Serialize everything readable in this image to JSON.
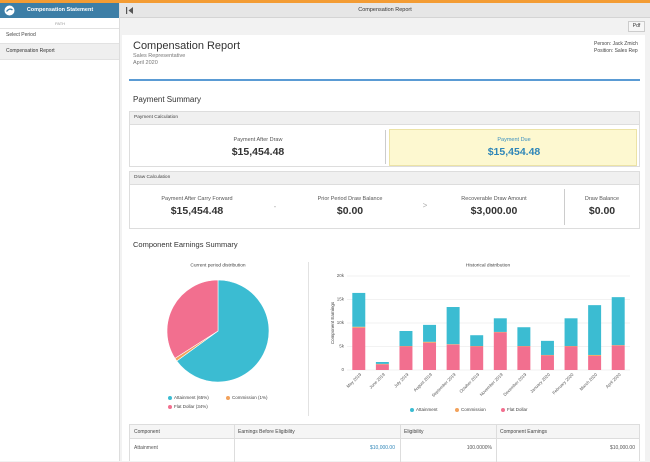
{
  "top_bar": {
    "title": "Compensation Report"
  },
  "sidebar": {
    "title": "Compensation Statement",
    "path_label": "PATH",
    "items": [
      "Select Period",
      "Compensation Report"
    ]
  },
  "toolbar": {
    "pdf": "Pdf"
  },
  "report": {
    "title": "Compensation Report",
    "subtitle": "Sales Representative",
    "period": "April 2020",
    "person": "Person: Jack Zmich",
    "position": "Position: Sales Rep"
  },
  "payment_summary": {
    "title": "Payment Summary",
    "payment_calculation": {
      "header": "Payment Calculation",
      "items": [
        {
          "label": "Payment After Draw",
          "value": "$15,454.48"
        },
        {
          "label": "Payment Due",
          "value": "$15,454.48"
        }
      ]
    },
    "draw_calculation": {
      "header": "Draw Calculation",
      "items": [
        {
          "label": "Payment After Carry Forward",
          "value": "$15,454.48"
        },
        {
          "label": "Prior Period Draw Balance",
          "value": "$0.00"
        },
        {
          "label": "Recoverable Draw Amount",
          "value": "$3,000.00"
        },
        {
          "label": "Draw Balance",
          "value": "$0.00"
        }
      ],
      "separators": [
        "-",
        ">"
      ]
    }
  },
  "component_earnings": {
    "title": "Component Earnings Summary"
  },
  "chart_data": [
    {
      "type": "pie",
      "title": "Current period distribution",
      "categories": [
        "Attainment (65%)",
        "Commission (1%)",
        "Flat Dollar (34%)"
      ],
      "values": [
        65,
        1,
        34
      ],
      "colors": [
        "#3bbcd2",
        "#f2a25c",
        "#f26f8f"
      ]
    },
    {
      "type": "bar",
      "stacked": true,
      "title": "Historical distribution",
      "y_label": "Component Earnings",
      "categories": [
        "May 2019",
        "June 2019",
        "July 2019",
        "August 2019",
        "September 2019",
        "October 2019",
        "November 2019",
        "December 2019",
        "January 2020",
        "February 2020",
        "March 2020",
        "April 2020"
      ],
      "series": [
        {
          "name": "Attainment",
          "color": "#3bbcd2",
          "values": [
            7200,
            400,
            3200,
            3600,
            7900,
            2300,
            2900,
            4000,
            3000,
            5900,
            10600,
            10200
          ]
        },
        {
          "name": "Commission",
          "color": "#f2a25c",
          "values": [
            200,
            100,
            100,
            200,
            100,
            100,
            100,
            100,
            100,
            100,
            200,
            100
          ]
        },
        {
          "name": "Flat Dollar",
          "color": "#f26f8f",
          "values": [
            9000,
            1200,
            5000,
            5800,
            5400,
            5000,
            8000,
            5000,
            3100,
            5000,
            3000,
            5200
          ]
        }
      ],
      "ylim": [
        0,
        20000
      ],
      "yticks": [
        0,
        {
          "value": 5000,
          "label": "5k"
        },
        {
          "value": 10000,
          "label": "10k"
        },
        {
          "value": 15000,
          "label": "15k"
        },
        {
          "value": 20000,
          "label": "20k"
        }
      ],
      "grid": true
    }
  ],
  "table": {
    "columns": [
      "Component",
      "Earnings Before Eligibility",
      "Eligibility",
      "Component Earnings"
    ],
    "rows": [
      [
        "Attainment",
        "$10,000.00",
        "100.0000%",
        "$10,000.00"
      ]
    ]
  }
}
